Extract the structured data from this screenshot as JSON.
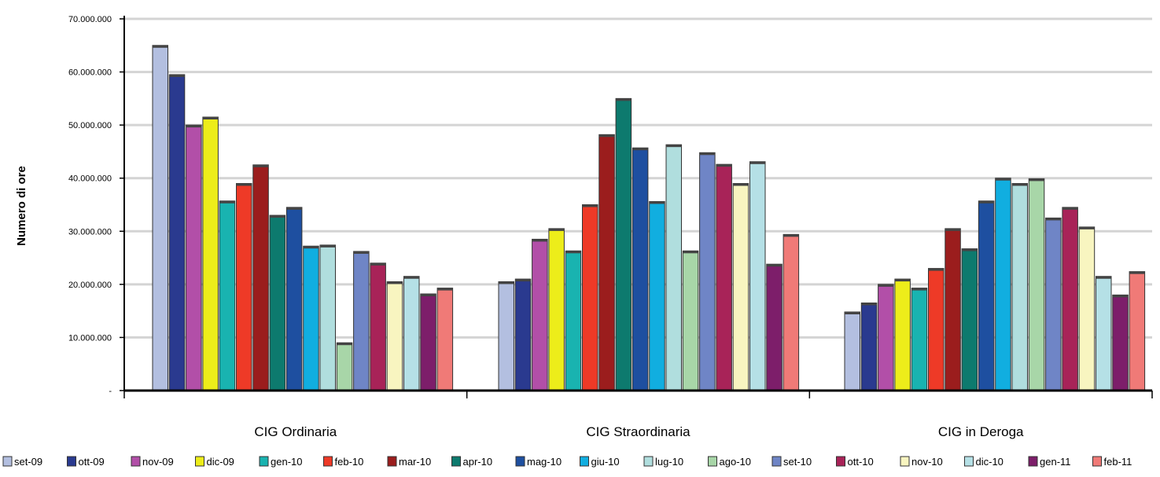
{
  "chart_data": {
    "type": "bar",
    "title": "",
    "xlabel": "",
    "ylabel": "Numero di ore",
    "ylim": [
      0,
      70000000
    ],
    "yticks": [
      {
        "value": 0,
        "label": "-"
      },
      {
        "value": 10000000,
        "label": "10.000.000"
      },
      {
        "value": 20000000,
        "label": "20.000.000"
      },
      {
        "value": 30000000,
        "label": "30.000.000"
      },
      {
        "value": 40000000,
        "label": "40.000.000"
      },
      {
        "value": 50000000,
        "label": "50.000.000"
      },
      {
        "value": 60000000,
        "label": "60.000.000"
      },
      {
        "value": 70000000,
        "label": "70.000.000"
      }
    ],
    "grid": true,
    "legend_position": "bottom",
    "categories": [
      "CIG Ordinaria",
      "CIG Straordinaria",
      "CIG in Deroga"
    ],
    "series": [
      {
        "name": "set-09",
        "color": "#b3bfe0",
        "values": [
          65000000,
          20500000,
          14800000
        ]
      },
      {
        "name": "ott-09",
        "color": "#2a3a8f",
        "values": [
          59500000,
          21000000,
          16500000
        ]
      },
      {
        "name": "nov-09",
        "color": "#b24fa8",
        "values": [
          50000000,
          28500000,
          20000000
        ]
      },
      {
        "name": "dic-09",
        "color": "#eded1a",
        "values": [
          51500000,
          30500000,
          21000000
        ]
      },
      {
        "name": "gen-10",
        "color": "#19b3b0",
        "values": [
          35700000,
          26300000,
          19300000
        ]
      },
      {
        "name": "feb-10",
        "color": "#ee3a27",
        "values": [
          39000000,
          35000000,
          23000000
        ]
      },
      {
        "name": "mar-10",
        "color": "#9b1d1d",
        "values": [
          42500000,
          48200000,
          30500000
        ]
      },
      {
        "name": "apr-10",
        "color": "#0d7a6e",
        "values": [
          33000000,
          55000000,
          26700000
        ]
      },
      {
        "name": "mag-10",
        "color": "#1e4fa0",
        "values": [
          34500000,
          45700000,
          35700000
        ]
      },
      {
        "name": "giu-10",
        "color": "#11aee0",
        "values": [
          27200000,
          35600000,
          40000000
        ]
      },
      {
        "name": "lug-10",
        "color": "#b0dede",
        "values": [
          27400000,
          46300000,
          39000000
        ]
      },
      {
        "name": "ago-10",
        "color": "#a8d6a8",
        "values": [
          9000000,
          26300000,
          39900000
        ]
      },
      {
        "name": "set-10",
        "color": "#6f85c6",
        "values": [
          26200000,
          44800000,
          32500000
        ]
      },
      {
        "name": "ott-10",
        "color": "#a82358",
        "values": [
          24000000,
          42600000,
          34500000
        ]
      },
      {
        "name": "nov-10",
        "color": "#f8f5c0",
        "values": [
          20500000,
          39000000,
          30800000
        ]
      },
      {
        "name": "dic-10",
        "color": "#b5e0e6",
        "values": [
          21500000,
          43100000,
          21500000
        ]
      },
      {
        "name": "gen-11",
        "color": "#7d1e6a",
        "values": [
          18200000,
          23800000,
          18000000
        ]
      },
      {
        "name": "feb-11",
        "color": "#f07a77",
        "values": [
          19300000,
          29400000,
          22400000
        ]
      }
    ]
  }
}
